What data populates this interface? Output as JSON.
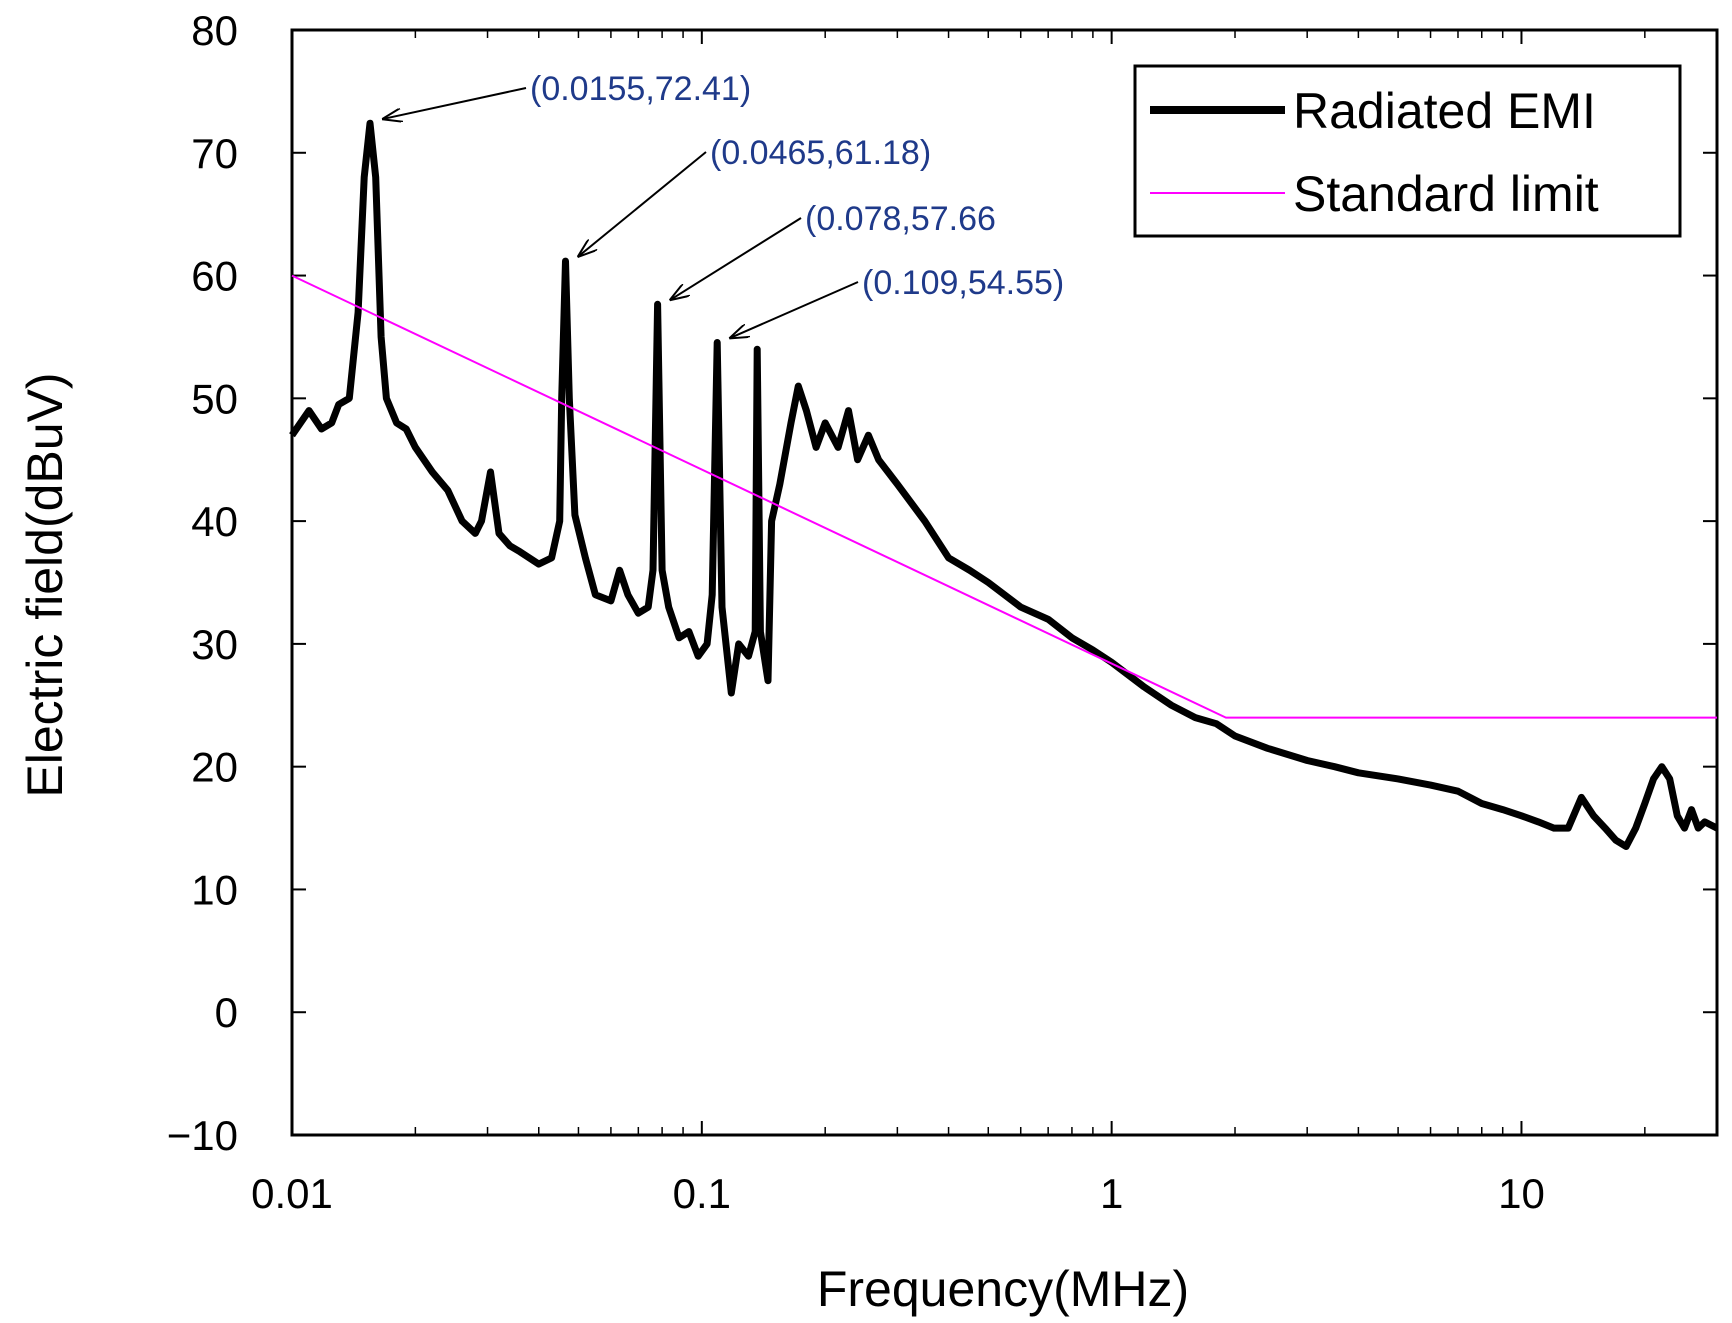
{
  "chart_data": {
    "type": "line",
    "title": "",
    "xlabel": "Frequency(MHz)",
    "ylabel": "Electric field(dBuV)",
    "xscale": "log",
    "xlim": [
      0.01,
      30
    ],
    "ylim": [
      -10,
      80
    ],
    "grid": false,
    "legend_position": "top-right",
    "x_ticks": [
      {
        "value": 0.01,
        "label": "0.01"
      },
      {
        "value": 0.1,
        "label": "0.1"
      },
      {
        "value": 1,
        "label": "1"
      },
      {
        "value": 10,
        "label": "10"
      }
    ],
    "y_ticks": [
      {
        "value": 80,
        "label": "80"
      },
      {
        "value": 70,
        "label": "70"
      },
      {
        "value": 60,
        "label": "60"
      },
      {
        "value": 50,
        "label": "50"
      },
      {
        "value": 40,
        "label": "40"
      },
      {
        "value": 30,
        "label": "30"
      },
      {
        "value": 20,
        "label": "20"
      },
      {
        "value": 10,
        "label": "10"
      },
      {
        "value": 0,
        "label": "0"
      },
      {
        "value": -10,
        "label": "−10"
      }
    ],
    "series": [
      {
        "name": "Radiated EMI",
        "color": "#000000",
        "points": [
          [
            0.01,
            47
          ],
          [
            0.011,
            49
          ],
          [
            0.0118,
            47.5
          ],
          [
            0.0125,
            48
          ],
          [
            0.013,
            49.5
          ],
          [
            0.0138,
            50
          ],
          [
            0.0145,
            57
          ],
          [
            0.015,
            68
          ],
          [
            0.0155,
            72.41
          ],
          [
            0.016,
            68
          ],
          [
            0.0165,
            55
          ],
          [
            0.017,
            50
          ],
          [
            0.018,
            48
          ],
          [
            0.019,
            47.5
          ],
          [
            0.02,
            46
          ],
          [
            0.022,
            44
          ],
          [
            0.024,
            42.5
          ],
          [
            0.026,
            40
          ],
          [
            0.028,
            39
          ],
          [
            0.029,
            40
          ],
          [
            0.0305,
            44
          ],
          [
            0.032,
            39
          ],
          [
            0.034,
            38
          ],
          [
            0.036,
            37.5
          ],
          [
            0.04,
            36.5
          ],
          [
            0.043,
            37
          ],
          [
            0.045,
            40
          ],
          [
            0.0455,
            50
          ],
          [
            0.0465,
            61.18
          ],
          [
            0.0475,
            50
          ],
          [
            0.049,
            40.5
          ],
          [
            0.052,
            37
          ],
          [
            0.055,
            34
          ],
          [
            0.06,
            33.5
          ],
          [
            0.063,
            36
          ],
          [
            0.066,
            34
          ],
          [
            0.07,
            32.5
          ],
          [
            0.074,
            33
          ],
          [
            0.076,
            36
          ],
          [
            0.078,
            57.66
          ],
          [
            0.08,
            36
          ],
          [
            0.083,
            33
          ],
          [
            0.088,
            30.5
          ],
          [
            0.093,
            31
          ],
          [
            0.098,
            29
          ],
          [
            0.103,
            30
          ],
          [
            0.106,
            34
          ],
          [
            0.109,
            54.55
          ],
          [
            0.112,
            33
          ],
          [
            0.118,
            26
          ],
          [
            0.123,
            30
          ],
          [
            0.13,
            29
          ],
          [
            0.135,
            31
          ],
          [
            0.1365,
            54
          ],
          [
            0.139,
            31
          ],
          [
            0.145,
            27
          ],
          [
            0.148,
            40
          ],
          [
            0.155,
            43
          ],
          [
            0.165,
            48
          ],
          [
            0.172,
            51
          ],
          [
            0.18,
            49
          ],
          [
            0.19,
            46
          ],
          [
            0.2,
            48
          ],
          [
            0.215,
            46
          ],
          [
            0.228,
            49
          ],
          [
            0.24,
            45
          ],
          [
            0.255,
            47
          ],
          [
            0.27,
            45
          ],
          [
            0.3,
            43
          ],
          [
            0.35,
            40
          ],
          [
            0.4,
            37
          ],
          [
            0.45,
            36
          ],
          [
            0.5,
            35
          ],
          [
            0.6,
            33
          ],
          [
            0.7,
            32
          ],
          [
            0.8,
            30.5
          ],
          [
            0.9,
            29.5
          ],
          [
            1.0,
            28.5
          ],
          [
            1.2,
            26.5
          ],
          [
            1.4,
            25
          ],
          [
            1.6,
            24
          ],
          [
            1.8,
            23.5
          ],
          [
            2.0,
            22.5
          ],
          [
            2.4,
            21.5
          ],
          [
            3.0,
            20.5
          ],
          [
            3.5,
            20
          ],
          [
            4.0,
            19.5
          ],
          [
            5.0,
            19
          ],
          [
            6.0,
            18.5
          ],
          [
            7.0,
            18
          ],
          [
            8.0,
            17
          ],
          [
            9.0,
            16.5
          ],
          [
            10.0,
            16
          ],
          [
            11.0,
            15.5
          ],
          [
            12.0,
            15
          ],
          [
            13.0,
            15
          ],
          [
            14.0,
            17.5
          ],
          [
            15.0,
            16
          ],
          [
            16.0,
            15
          ],
          [
            17.0,
            14
          ],
          [
            18.0,
            13.5
          ],
          [
            19.0,
            15
          ],
          [
            20.0,
            17
          ],
          [
            21.0,
            19
          ],
          [
            22.0,
            20
          ],
          [
            23.0,
            19
          ],
          [
            24.0,
            16
          ],
          [
            25.0,
            15
          ],
          [
            26.0,
            16.5
          ],
          [
            27.0,
            15
          ],
          [
            28.0,
            15.5
          ],
          [
            30.0,
            15
          ]
        ]
      },
      {
        "name": "Standard limit",
        "color": "#ff00ff",
        "points": [
          [
            0.01,
            60
          ],
          [
            1.9,
            24
          ],
          [
            30,
            24
          ]
        ]
      }
    ],
    "annotations": [
      {
        "text": "(0.0155,72.41)",
        "x": 0.0155,
        "y": 72.41
      },
      {
        "text": "(0.0465,61.18)",
        "x": 0.0465,
        "y": 61.18
      },
      {
        "text": "(0.078,57.66",
        "x": 0.078,
        "y": 57.66
      },
      {
        "text": "(0.109,54.55)",
        "x": 0.109,
        "y": 54.55
      }
    ]
  }
}
